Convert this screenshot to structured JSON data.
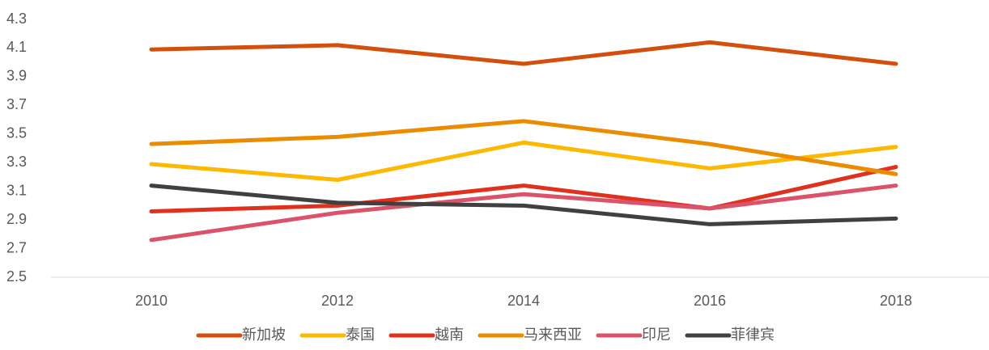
{
  "chart_data": {
    "type": "line",
    "categories": [
      "2010",
      "2012",
      "2014",
      "2016",
      "2018"
    ],
    "series": [
      {
        "name": "新加坡",
        "color": "#d24f0e",
        "values": [
          4.09,
          4.12,
          3.99,
          4.14,
          3.99
        ]
      },
      {
        "name": "泰国",
        "color": "#ffb800",
        "values": [
          3.29,
          3.18,
          3.44,
          3.26,
          3.41
        ]
      },
      {
        "name": "越南",
        "color": "#e0301e",
        "values": [
          2.96,
          3.0,
          3.14,
          2.98,
          3.27
        ]
      },
      {
        "name": "马来西亚",
        "color": "#eb8c00",
        "values": [
          3.43,
          3.48,
          3.59,
          3.43,
          3.22
        ]
      },
      {
        "name": "印尼",
        "color": "#db536a",
        "values": [
          2.76,
          2.95,
          3.08,
          2.98,
          3.14
        ]
      },
      {
        "name": "菲律宾",
        "color": "#404040",
        "values": [
          3.14,
          3.02,
          3.0,
          2.87,
          2.91
        ]
      }
    ],
    "ylim": [
      2.5,
      4.3
    ],
    "yticks": [
      2.5,
      2.7,
      2.9,
      3.1,
      3.3,
      3.5,
      3.7,
      3.9,
      4.1,
      4.3
    ],
    "grid": false,
    "legend": "bottom"
  }
}
